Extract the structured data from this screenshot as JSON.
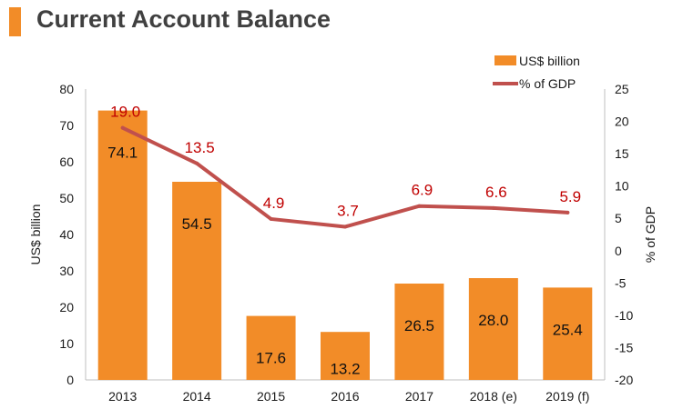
{
  "header": {
    "title": "Current Account Balance"
  },
  "colors": {
    "accent": "#f28c28",
    "bar": "#f28c28",
    "line": "#c0504d",
    "line_label": "#c00000",
    "text": "#1a1a1a"
  },
  "chart_data": {
    "type": "bar",
    "categories": [
      "2013",
      "2014",
      "2015",
      "2016",
      "2017",
      "2018 (e)",
      "2019 (f)"
    ],
    "series": [
      {
        "name": "US$ billion",
        "type": "bar",
        "axis": "left",
        "values": [
          74.1,
          54.5,
          17.6,
          13.2,
          26.5,
          28.0,
          25.4
        ]
      },
      {
        "name": "% of GDP",
        "type": "line",
        "axis": "right",
        "values": [
          19.0,
          13.5,
          4.9,
          3.7,
          6.9,
          6.6,
          5.9
        ]
      }
    ],
    "value_labels": {
      "bars": [
        "74.1",
        "54.5",
        "17.6",
        "13.2",
        "26.5",
        "28.0",
        "25.4"
      ],
      "line": [
        "19.0",
        "13.5",
        "4.9",
        "3.7",
        "6.9",
        "6.6",
        "5.9"
      ]
    },
    "ylabel": "US$ billion",
    "y2label": "% of GDP",
    "ylim": [
      0,
      80
    ],
    "y2lim": [
      -20,
      25
    ],
    "yticks": [
      "0",
      "10",
      "20",
      "30",
      "40",
      "50",
      "60",
      "70",
      "80"
    ],
    "y2ticks": [
      "-20",
      "-15",
      "-10",
      "-5",
      "0",
      "5",
      "10",
      "15",
      "20",
      "25"
    ],
    "legend_position": "top-right",
    "grid": false
  }
}
